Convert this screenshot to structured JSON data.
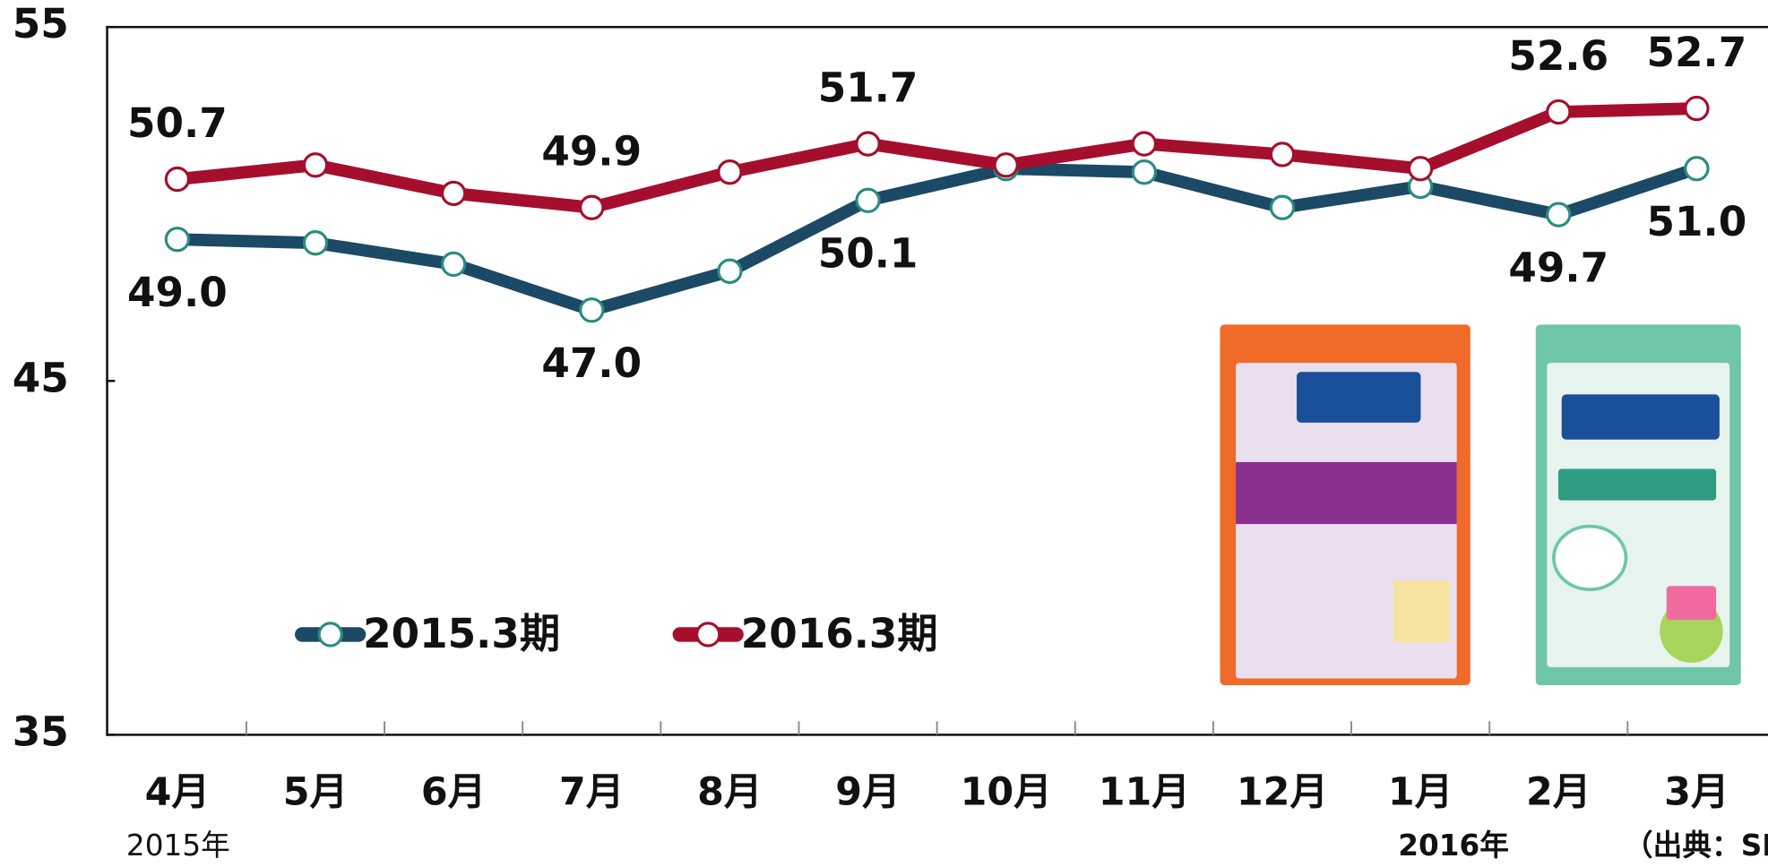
{
  "chart_data": {
    "type": "line",
    "categories": [
      "4月",
      "5月",
      "6月",
      "7月",
      "8月",
      "9月",
      "10月",
      "11月",
      "12月",
      "1月",
      "2月",
      "3月"
    ],
    "year_labels": [
      "2015年",
      null,
      null,
      null,
      null,
      null,
      null,
      null,
      null,
      "2016年",
      null,
      null
    ],
    "source": "（出典：SF",
    "series": [
      {
        "name": "2015.3期",
        "color": "#1b4966",
        "values": [
          49.0,
          48.9,
          48.3,
          47.0,
          48.1,
          50.1,
          51.0,
          50.9,
          49.9,
          50.5,
          49.7,
          51.0
        ],
        "value_labels": [
          "49.0",
          null,
          null,
          "47.0",
          null,
          "50.1",
          null,
          null,
          null,
          null,
          "49.7",
          "51.0"
        ]
      },
      {
        "name": "2016.3期",
        "color": "#a50f2d",
        "values": [
          50.7,
          51.1,
          50.3,
          49.9,
          50.9,
          51.7,
          51.1,
          51.7,
          51.4,
          51.0,
          52.6,
          52.7
        ],
        "value_labels": [
          "50.7",
          null,
          null,
          "49.9",
          null,
          "51.7",
          null,
          null,
          null,
          null,
          "52.6",
          "52.7"
        ]
      }
    ],
    "ylim": [
      35,
      55
    ],
    "yticks": [
      35,
      45,
      55
    ],
    "grid": false
  }
}
